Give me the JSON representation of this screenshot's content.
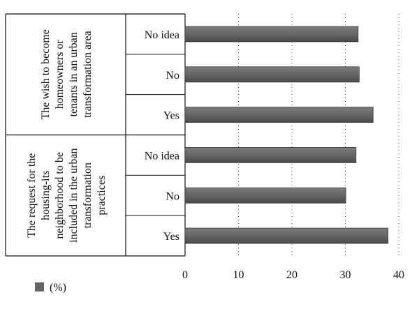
{
  "chart_data": {
    "type": "bar",
    "orientation": "horizontal",
    "groups": [
      {
        "label_lines": [
          "The wish to become",
          "homeowners or",
          "tenants in an urban",
          "transformation area"
        ],
        "categories": [
          "No idea",
          "No",
          "Yes"
        ],
        "values": [
          32.4,
          32.6,
          35.2
        ]
      },
      {
        "label_lines": [
          "The request for the",
          "housing-its",
          "neighborhood to be",
          "included in the urban",
          "transformation",
          "practices"
        ],
        "categories": [
          "No idea",
          "No",
          "Yes"
        ],
        "values": [
          32.0,
          30.1,
          38.0
        ]
      }
    ],
    "xlim": [
      0,
      40
    ],
    "xticks": [
      0,
      10,
      20,
      30,
      40
    ],
    "grid": "vertical-dotted",
    "bar_color": "#666666",
    "legend": {
      "position": "bottom-left",
      "label": "(%)"
    }
  }
}
